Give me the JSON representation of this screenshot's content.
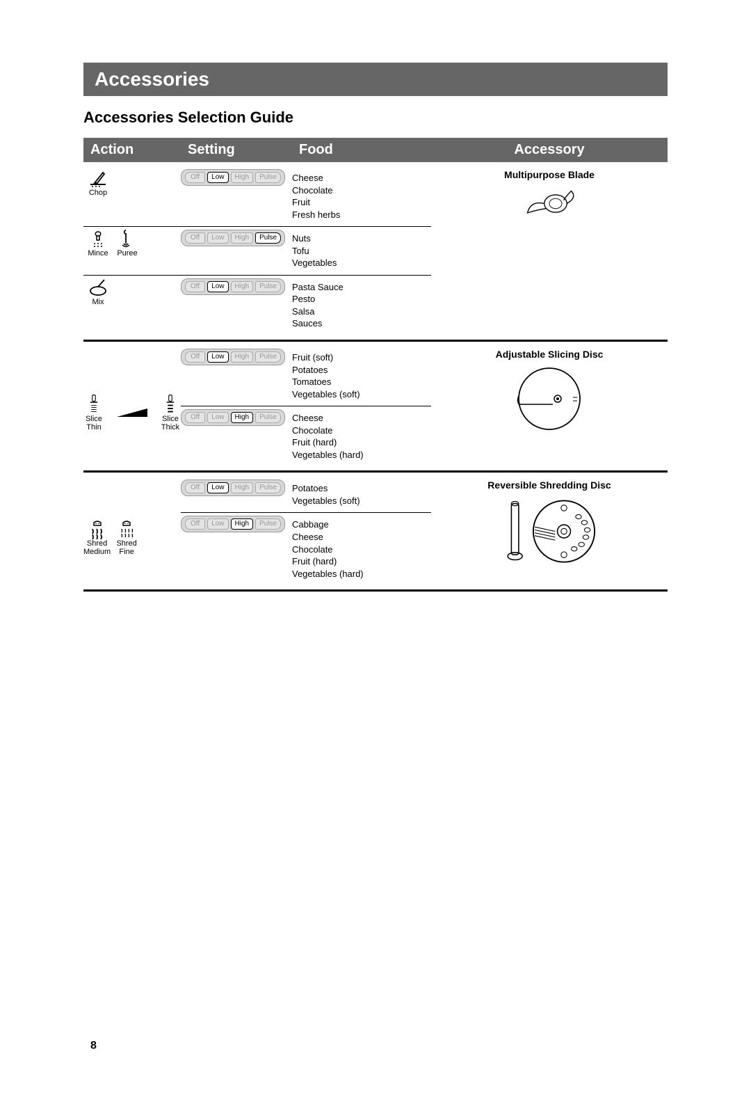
{
  "sectionTitle": "Accessories",
  "subtitle": "Accessories Selection Guide",
  "columns": {
    "action": "Action",
    "setting": "Setting",
    "food": "Food",
    "accessory": "Accessory"
  },
  "ctrlLabels": {
    "off": "Off",
    "low": "Low",
    "high": "High",
    "pulse": "Pulse"
  },
  "groups": [
    {
      "accessoryTitle": "Multipurpose Blade",
      "rows": [
        {
          "actions": [
            {
              "label": "Chop",
              "icon": "chop"
            }
          ],
          "setting": {
            "active": "low"
          },
          "foods": [
            "Cheese",
            "Chocolate",
            "Fruit",
            "Fresh herbs"
          ]
        },
        {
          "actions": [
            {
              "label": "Mince",
              "icon": "mince"
            },
            {
              "label": "Puree",
              "icon": "puree"
            }
          ],
          "setting": {
            "active": "pulse"
          },
          "foods": [
            "Nuts",
            "Tofu",
            "Vegetables"
          ]
        },
        {
          "actions": [
            {
              "label": "Mix",
              "icon": "mix"
            }
          ],
          "setting": {
            "active": "low"
          },
          "foods": [
            "Pasta Sauce",
            "Pesto",
            "Salsa",
            "Sauces"
          ]
        }
      ]
    },
    {
      "accessoryTitle": "Adjustable Slicing Disc",
      "actionsSpan": [
        {
          "label": "Slice\nThin",
          "icon": "slice-thin"
        },
        {
          "label": "Slice\nThick",
          "icon": "slice-thick"
        }
      ],
      "rows": [
        {
          "setting": {
            "active": "low"
          },
          "foods": [
            "Fruit (soft)",
            "Potatoes",
            "Tomatoes",
            "Vegetables (soft)"
          ]
        },
        {
          "setting": {
            "active": "high"
          },
          "foods": [
            "Cheese",
            "Chocolate",
            "Fruit (hard)",
            "Vegetables (hard)"
          ]
        }
      ]
    },
    {
      "accessoryTitle": "Reversible Shredding Disc",
      "actionsSpan": [
        {
          "label": "Shred\nMedium",
          "icon": "shred-medium"
        },
        {
          "label": "Shred\nFine",
          "icon": "shred-fine"
        }
      ],
      "rows": [
        {
          "setting": {
            "active": "low"
          },
          "foods": [
            "Potatoes",
            "Vegetables (soft)"
          ]
        },
        {
          "setting": {
            "active": "high"
          },
          "foods": [
            "Cabbage",
            "Cheese",
            "Chocolate",
            "Fruit (hard)",
            "Vegetables (hard)"
          ]
        }
      ]
    }
  ],
  "pageNumber": "8",
  "colors": {
    "headerBg": "#666666",
    "panelBg": "#d8d8d8",
    "stroke": "#000000"
  }
}
